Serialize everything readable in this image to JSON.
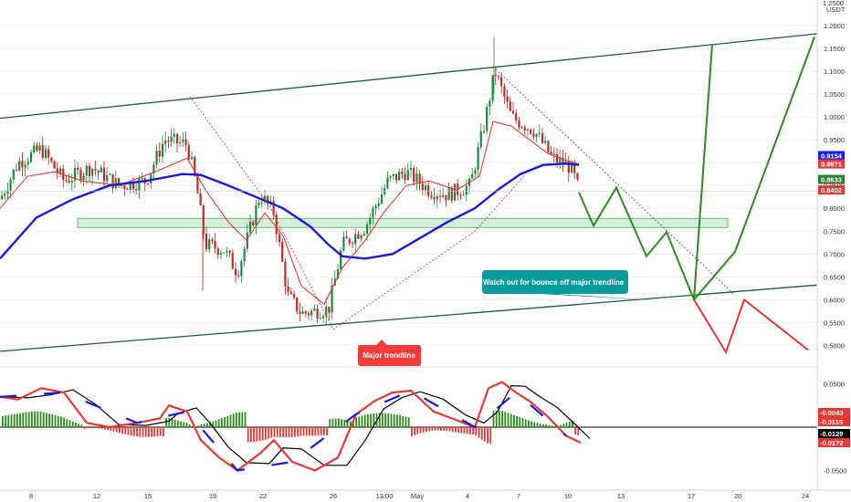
{
  "chart_data": {
    "type": "candlestick",
    "currency": "USDT",
    "price_axis": {
      "ticks": [
        "1.2000",
        "1.1500",
        "1.1000",
        "1.0500",
        "1.0000",
        "0.9500",
        "0.9000",
        "0.8500",
        "0.8000",
        "0.7500",
        "0.7000",
        "0.6500",
        "0.6000",
        "0.5500",
        "0.5000"
      ],
      "top_label": "1.2500"
    },
    "indicator_axis": {
      "ticks": [
        "0.0500",
        "-0.0500"
      ]
    },
    "x_axis_labels": [
      "8",
      "12",
      "15",
      "19",
      "22",
      "26",
      "13:00",
      "May",
      "4",
      "7",
      "10",
      "13",
      "17",
      "20",
      "24"
    ],
    "price_tags": [
      {
        "value": "0.9154",
        "color": "#1a1aff"
      },
      {
        "value": "0.8971",
        "color": "#e53935"
      },
      {
        "value": "0.8633",
        "color": "#2e7d32"
      },
      {
        "value": "0.8402",
        "color": "#e53935"
      }
    ],
    "indicator_tags": [
      {
        "value": "-0.0043",
        "color": "#e53935"
      },
      {
        "value": "-0.0115",
        "color": "#e53935"
      },
      {
        "value": "-0.0129",
        "color": "#000000"
      },
      {
        "value": "-0.0172",
        "color": "#e53935"
      }
    ],
    "annotations": {
      "bounce_note": "Watch out for bounce off major trendline",
      "major_trendline": "Major trendline"
    },
    "channel_upper": [
      [
        0,
        0.997
      ],
      [
        895,
        1.182
      ]
    ],
    "channel_lower": [
      [
        0,
        0.487
      ],
      [
        895,
        0.632
      ]
    ],
    "support_zone": [
      0.758,
      0.778
    ],
    "green_path_1": [
      [
        634,
        0.835
      ],
      [
        650,
        0.762
      ],
      [
        675,
        0.845
      ],
      [
        708,
        0.695
      ],
      [
        730,
        0.748
      ],
      [
        760,
        0.6
      ],
      [
        780,
        1.16
      ]
    ],
    "green_path_2": [
      [
        760,
        0.6
      ],
      [
        805,
        0.705
      ],
      [
        892,
        1.175
      ]
    ],
    "red_path": [
      [
        760,
        0.6
      ],
      [
        795,
        0.485
      ],
      [
        815,
        0.6
      ],
      [
        885,
        0.49
      ]
    ],
    "dotted_trend_1": [
      [
        208,
        1.045
      ],
      [
        295,
        0.805
      ],
      [
        365,
        0.535
      ]
    ],
    "dotted_trend_2": [
      [
        365,
        0.535
      ],
      [
        520,
        0.75
      ],
      [
        575,
        0.873
      ]
    ],
    "dotted_trend_3": [
      [
        540,
        1.11
      ],
      [
        805,
        0.61
      ]
    ],
    "candle_seed": 7
  }
}
